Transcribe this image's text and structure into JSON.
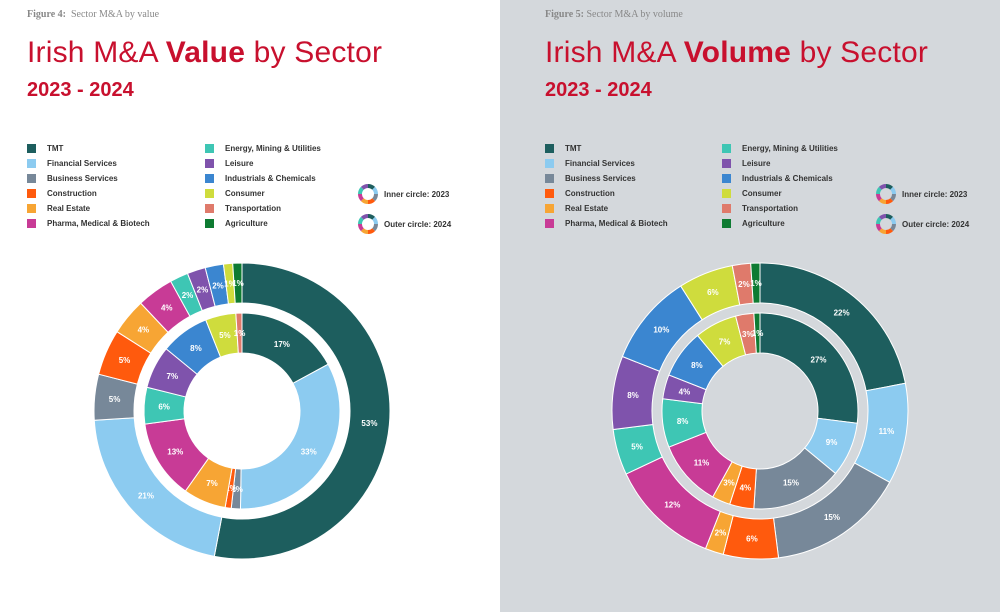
{
  "sector_colors": {
    "TMT": "#1d5e5e",
    "Financial Services": "#8ccbf0",
    "Business Services": "#778899",
    "Construction": "#ff5a0d",
    "Real Estate": "#f7a534",
    "Pharma, Medical & Biotech": "#c83b96",
    "Energy, Mining & Utilities": "#3ec6b4",
    "Leisure": "#7f53ac",
    "Industrials & Chemicals": "#3b86d0",
    "Consumer": "#cfdc3d",
    "Transportation": "#df7a6b",
    "Agriculture": "#0e7b32"
  },
  "circle_legend": {
    "inner": "Inner circle: 2023",
    "outer": "Outer circle: 2024"
  },
  "panels": [
    {
      "figure_label": "Figure 4:",
      "figure_caption": "Sector M&A by value",
      "title_prefix": "Irish M&A ",
      "title_bold": "Value",
      "title_suffix": " by Sector",
      "years": "2023 - 2024"
    },
    {
      "figure_label": "Figure 5:",
      "figure_caption": "Sector M&A by volume",
      "title_prefix": "Irish M&A ",
      "title_bold": "Volume",
      "title_suffix": " by Sector",
      "years": "2023 - 2024"
    }
  ],
  "chart_data": [
    {
      "type": "pie",
      "variant": "nested-donut",
      "title": "Irish M&A Value by Sector 2023 - 2024",
      "legend": [
        "TMT",
        "Financial Services",
        "Business Services",
        "Construction",
        "Real Estate",
        "Pharma, Medical & Biotech",
        "Energy, Mining & Utilities",
        "Leisure",
        "Industrials & Chemicals",
        "Consumer",
        "Transportation",
        "Agriculture"
      ],
      "legend_columns": [
        [
          "TMT",
          "Financial Services",
          "Business Services",
          "Construction",
          "Real Estate",
          "Pharma, Medical & Biotech"
        ],
        [
          "Energy, Mining & Utilities",
          "Leisure",
          "Industrials & Chemicals",
          "Consumer",
          "Transportation",
          "Agriculture"
        ]
      ],
      "inner_2023": [
        {
          "sector": "TMT",
          "value": 17,
          "label": "17%"
        },
        {
          "sector": "Financial Services",
          "value": 33,
          "label": "33%"
        },
        {
          "sector": "Business Services",
          "value": 1.5,
          "label": "2%"
        },
        {
          "sector": "Construction",
          "value": 1,
          "label": "1%"
        },
        {
          "sector": "Real Estate",
          "value": 7,
          "label": "7%"
        },
        {
          "sector": "Pharma, Medical & Biotech",
          "value": 13,
          "label": "13%"
        },
        {
          "sector": "Energy, Mining & Utilities",
          "value": 6,
          "label": "6%"
        },
        {
          "sector": "Leisure",
          "value": 7,
          "label": "7%"
        },
        {
          "sector": "Industrials & Chemicals",
          "value": 8,
          "label": "8%"
        },
        {
          "sector": "Consumer",
          "value": 5,
          "label": "5%"
        },
        {
          "sector": "Transportation",
          "value": 1,
          "label": "1%"
        }
      ],
      "outer_2024": [
        {
          "sector": "TMT",
          "value": 53,
          "label": "53%"
        },
        {
          "sector": "Financial Services",
          "value": 21,
          "label": "21%"
        },
        {
          "sector": "Business Services",
          "value": 5,
          "label": "5%"
        },
        {
          "sector": "Construction",
          "value": 5,
          "label": "5%"
        },
        {
          "sector": "Real Estate",
          "value": 4,
          "label": "4%"
        },
        {
          "sector": "Pharma, Medical & Biotech",
          "value": 4,
          "label": "4%"
        },
        {
          "sector": "Energy, Mining & Utilities",
          "value": 2,
          "label": "2%"
        },
        {
          "sector": "Leisure",
          "value": 2,
          "label": "2%"
        },
        {
          "sector": "Industrials & Chemicals",
          "value": 2,
          "label": "2%"
        },
        {
          "sector": "Consumer",
          "value": 1,
          "label": "1%"
        },
        {
          "sector": "Agriculture",
          "value": 1,
          "label": "1%"
        }
      ]
    },
    {
      "type": "pie",
      "variant": "nested-donut",
      "title": "Irish M&A Volume by Sector 2023 - 2024",
      "legend": [
        "TMT",
        "Financial Services",
        "Business Services",
        "Construction",
        "Real Estate",
        "Pharma, Medical & Biotech",
        "Energy, Mining & Utilities",
        "Leisure",
        "Industrials & Chemicals",
        "Consumer",
        "Transportation",
        "Agriculture"
      ],
      "legend_columns": [
        [
          "TMT",
          "Financial Services",
          "Business Services",
          "Construction",
          "Real Estate",
          "Pharma, Medical & Biotech"
        ],
        [
          "Energy, Mining & Utilities",
          "Leisure",
          "Industrials & Chemicals",
          "Consumer",
          "Transportation",
          "Agriculture"
        ]
      ],
      "inner_2023": [
        {
          "sector": "TMT",
          "value": 27,
          "label": "27%"
        },
        {
          "sector": "Financial Services",
          "value": 9,
          "label": "9%"
        },
        {
          "sector": "Business Services",
          "value": 15,
          "label": "15%"
        },
        {
          "sector": "Construction",
          "value": 4,
          "label": "4%"
        },
        {
          "sector": "Real Estate",
          "value": 3,
          "label": "3%"
        },
        {
          "sector": "Pharma, Medical & Biotech",
          "value": 11,
          "label": "11%"
        },
        {
          "sector": "Energy, Mining & Utilities",
          "value": 8,
          "label": "8%"
        },
        {
          "sector": "Leisure",
          "value": 4,
          "label": "4%"
        },
        {
          "sector": "Industrials & Chemicals",
          "value": 8,
          "label": "8%"
        },
        {
          "sector": "Consumer",
          "value": 7,
          "label": "7%"
        },
        {
          "sector": "Transportation",
          "value": 3,
          "label": "3%"
        },
        {
          "sector": "Agriculture",
          "value": 1,
          "label": "1%"
        }
      ],
      "outer_2024": [
        {
          "sector": "TMT",
          "value": 22,
          "label": "22%"
        },
        {
          "sector": "Financial Services",
          "value": 11,
          "label": "11%"
        },
        {
          "sector": "Business Services",
          "value": 15,
          "label": "15%"
        },
        {
          "sector": "Construction",
          "value": 6,
          "label": "6%"
        },
        {
          "sector": "Real Estate",
          "value": 2,
          "label": "2%"
        },
        {
          "sector": "Pharma, Medical & Biotech",
          "value": 12,
          "label": "12%"
        },
        {
          "sector": "Energy, Mining & Utilities",
          "value": 5,
          "label": "5%"
        },
        {
          "sector": "Leisure",
          "value": 8,
          "label": "8%"
        },
        {
          "sector": "Industrials & Chemicals",
          "value": 10,
          "label": "10%"
        },
        {
          "sector": "Consumer",
          "value": 6,
          "label": "6%"
        },
        {
          "sector": "Transportation",
          "value": 2,
          "label": "2%"
        },
        {
          "sector": "Agriculture",
          "value": 1,
          "label": "1%"
        }
      ]
    }
  ]
}
